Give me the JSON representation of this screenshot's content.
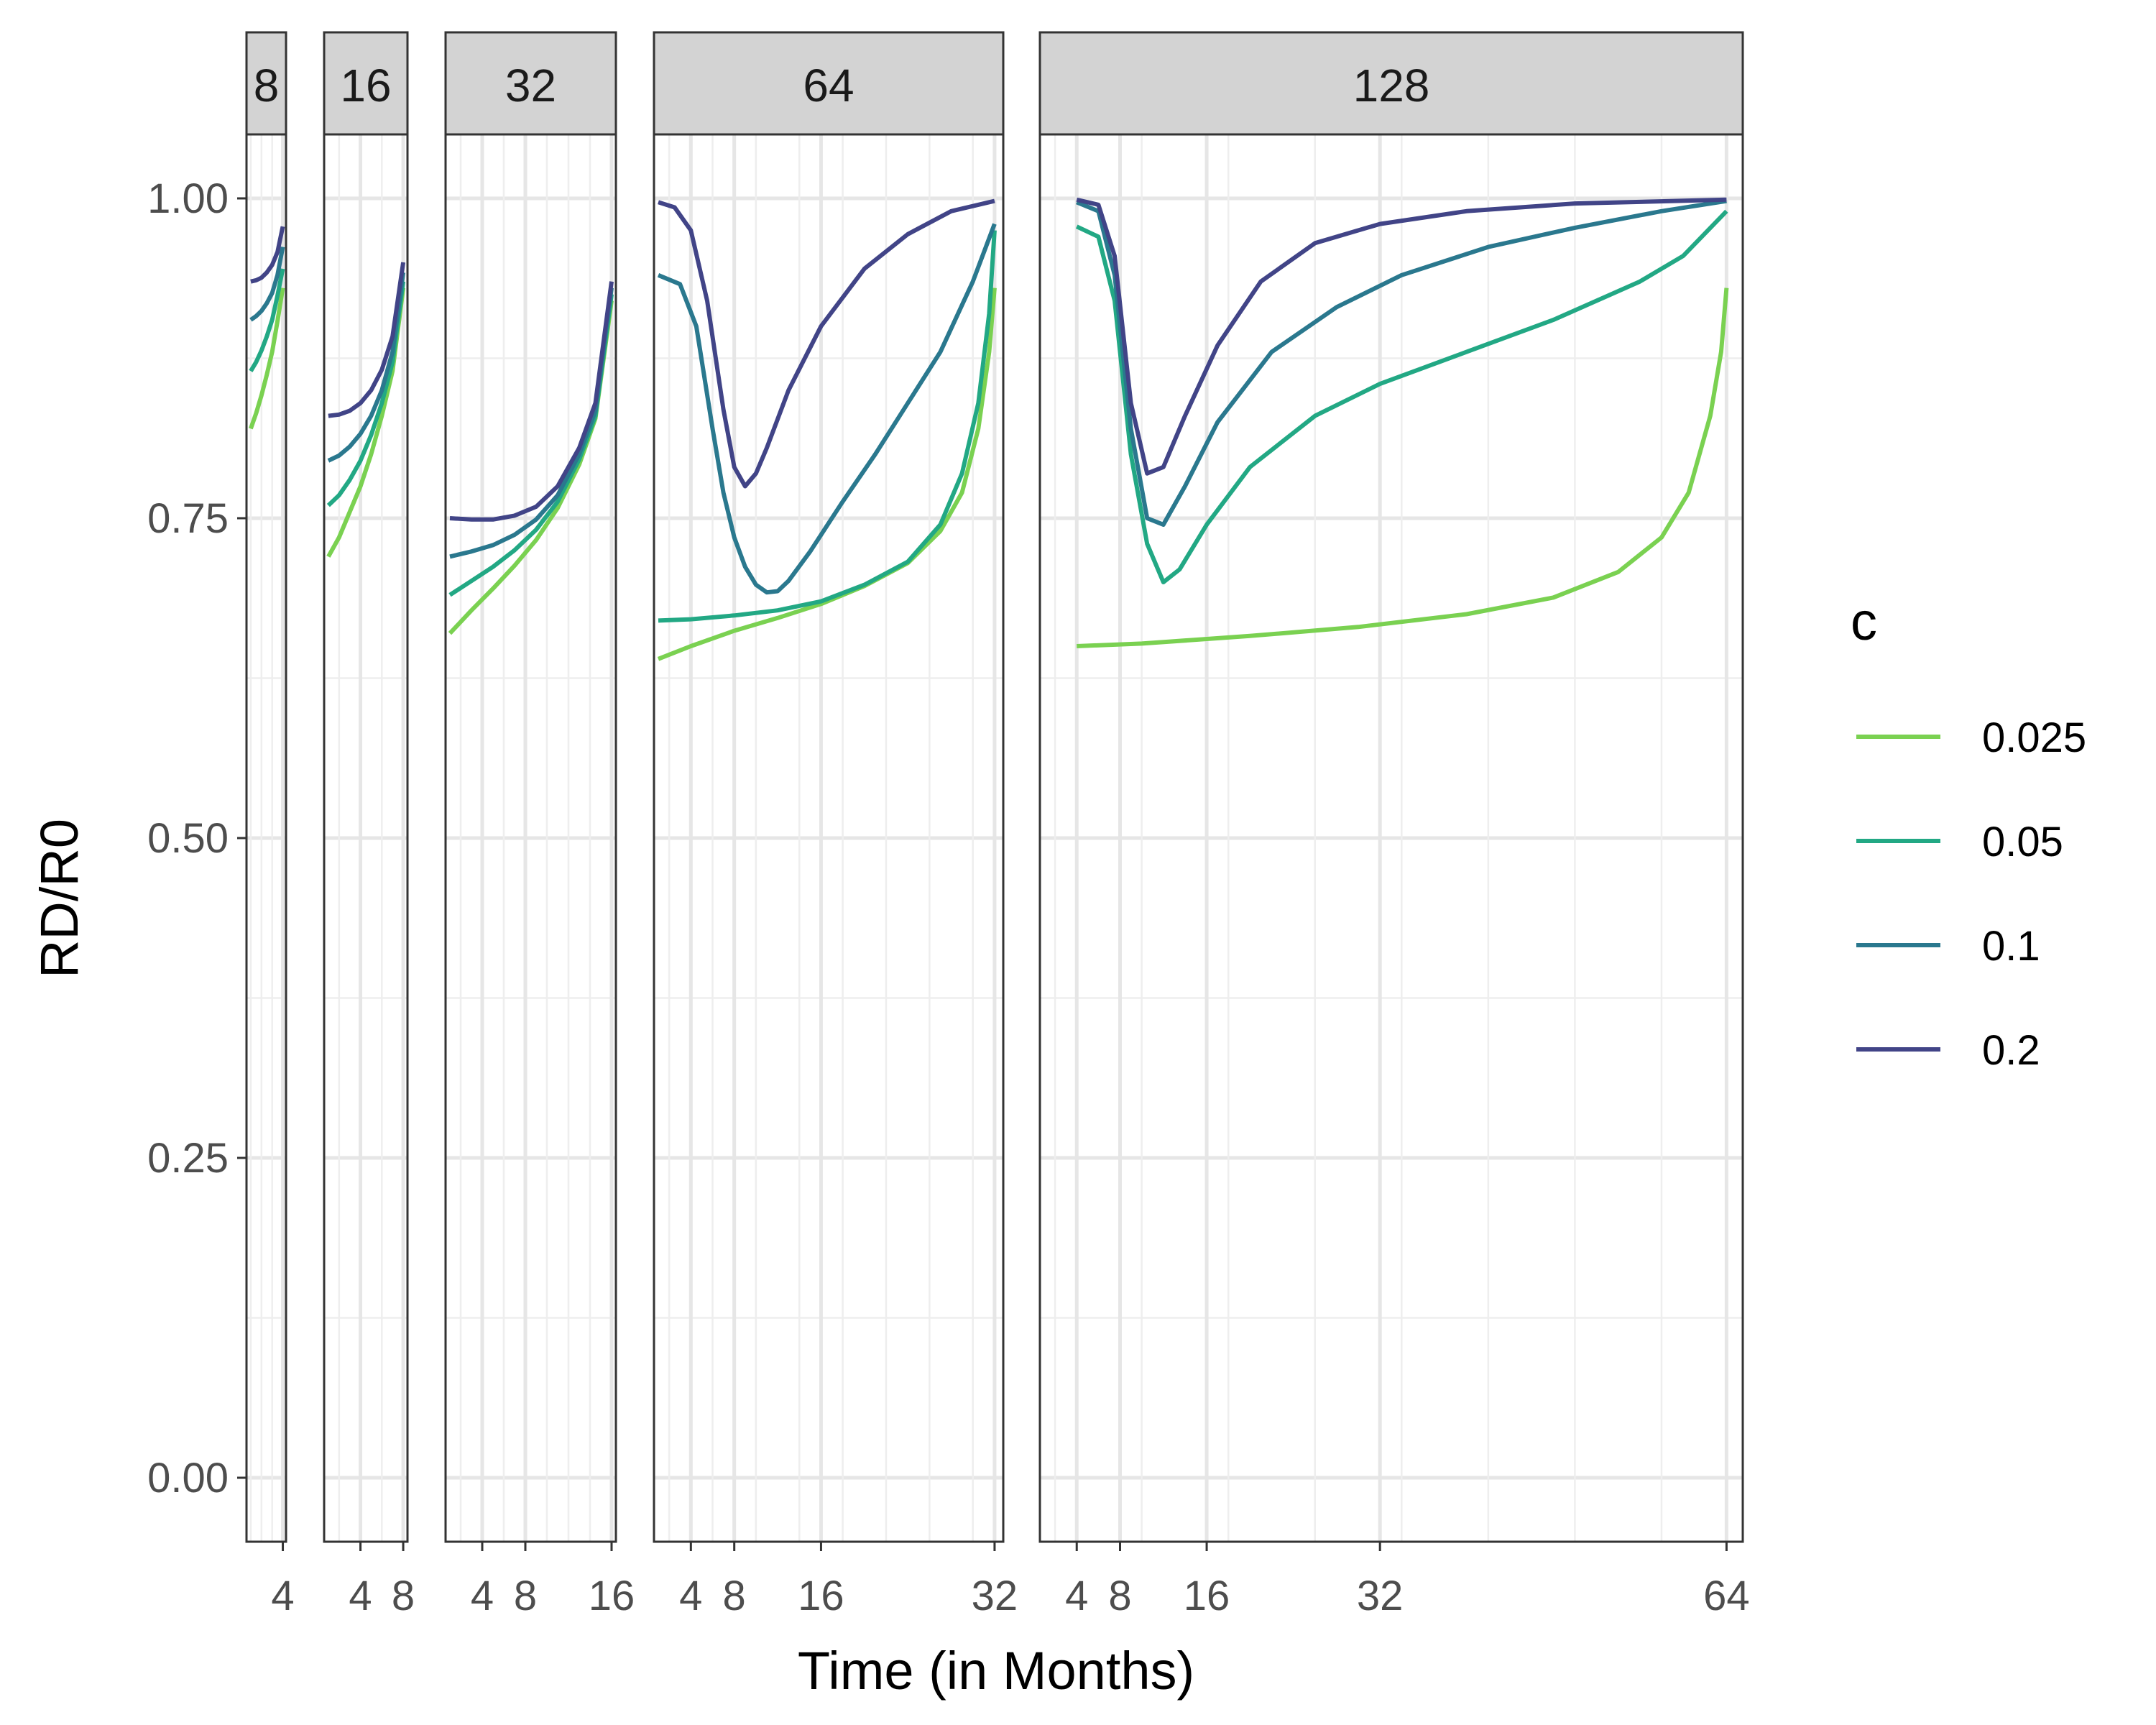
{
  "chart_data": {
    "type": "line",
    "xlabel": "Time (in Months)",
    "ylabel": "RD/R0",
    "ylim": [
      -0.05,
      1.05
    ],
    "y_ticks": [
      0.0,
      0.25,
      0.5,
      0.75,
      1.0
    ],
    "y_tick_labels": [
      "0.00",
      "0.25",
      "0.50",
      "0.75",
      "1.00"
    ],
    "legend": {
      "title": "c",
      "placement": "right"
    },
    "series_styles": [
      {
        "name": "0.025",
        "color": "#7AD151"
      },
      {
        "name": "0.05",
        "color": "#22A884"
      },
      {
        "name": "0.1",
        "color": "#2A788E"
      },
      {
        "name": "0.2",
        "color": "#414487"
      }
    ],
    "panels": [
      {
        "label": "8",
        "xlim": [
          0.6,
          4.3
        ],
        "x_ticks": [
          4
        ],
        "x_tick_labels": [
          "4"
        ],
        "series": [
          {
            "name": "0.025",
            "points": [
              [
                1,
                0.82
              ],
              [
                1.5,
                0.832
              ],
              [
                2,
                0.846
              ],
              [
                2.5,
                0.862
              ],
              [
                3,
                0.88
              ],
              [
                3.5,
                0.904
              ],
              [
                4,
                0.93
              ]
            ]
          },
          {
            "name": "0.05",
            "points": [
              [
                1,
                0.865
              ],
              [
                1.5,
                0.872
              ],
              [
                2,
                0.881
              ],
              [
                2.5,
                0.892
              ],
              [
                3,
                0.905
              ],
              [
                3.5,
                0.924
              ],
              [
                4,
                0.945
              ]
            ]
          },
          {
            "name": "0.1",
            "points": [
              [
                1,
                0.905
              ],
              [
                1.5,
                0.908
              ],
              [
                2,
                0.912
              ],
              [
                2.5,
                0.918
              ],
              [
                3,
                0.926
              ],
              [
                3.5,
                0.94
              ],
              [
                4,
                0.962
              ]
            ]
          },
          {
            "name": "0.2",
            "points": [
              [
                1,
                0.935
              ],
              [
                1.5,
                0.936
              ],
              [
                2,
                0.938
              ],
              [
                2.5,
                0.942
              ],
              [
                3,
                0.948
              ],
              [
                3.5,
                0.958
              ],
              [
                4,
                0.978
              ]
            ]
          }
        ]
      },
      {
        "label": "16",
        "xlim": [
          0.6,
          8.4
        ],
        "x_ticks": [
          4,
          8
        ],
        "x_tick_labels": [
          "4",
          "8"
        ],
        "series": [
          {
            "name": "0.025",
            "points": [
              [
                1,
                0.72
              ],
              [
                2,
                0.735
              ],
              [
                3,
                0.755
              ],
              [
                4,
                0.775
              ],
              [
                5,
                0.8
              ],
              [
                6,
                0.83
              ],
              [
                7,
                0.865
              ],
              [
                8,
                0.93
              ]
            ]
          },
          {
            "name": "0.05",
            "points": [
              [
                1,
                0.76
              ],
              [
                2,
                0.768
              ],
              [
                3,
                0.78
              ],
              [
                4,
                0.795
              ],
              [
                5,
                0.815
              ],
              [
                6,
                0.84
              ],
              [
                7,
                0.872
              ],
              [
                8,
                0.935
              ]
            ]
          },
          {
            "name": "0.1",
            "points": [
              [
                1,
                0.795
              ],
              [
                2,
                0.799
              ],
              [
                3,
                0.806
              ],
              [
                4,
                0.816
              ],
              [
                5,
                0.83
              ],
              [
                6,
                0.85
              ],
              [
                7,
                0.88
              ],
              [
                8,
                0.942
              ]
            ]
          },
          {
            "name": "0.2",
            "points": [
              [
                1,
                0.83
              ],
              [
                2,
                0.831
              ],
              [
                3,
                0.834
              ],
              [
                4,
                0.84
              ],
              [
                5,
                0.85
              ],
              [
                6,
                0.866
              ],
              [
                7,
                0.892
              ],
              [
                8,
                0.95
              ]
            ]
          }
        ]
      },
      {
        "label": "32",
        "xlim": [
          0.6,
          16.4
        ],
        "x_ticks": [
          4,
          8,
          16
        ],
        "x_tick_labels": [
          "4",
          "8",
          "16"
        ],
        "series": [
          {
            "name": "0.025",
            "points": [
              [
                1,
                0.66
              ],
              [
                3,
                0.678
              ],
              [
                5,
                0.695
              ],
              [
                7,
                0.713
              ],
              [
                9,
                0.733
              ],
              [
                11,
                0.758
              ],
              [
                13,
                0.792
              ],
              [
                14.5,
                0.828
              ],
              [
                16,
                0.92
              ]
            ]
          },
          {
            "name": "0.05",
            "points": [
              [
                1,
                0.69
              ],
              [
                3,
                0.701
              ],
              [
                5,
                0.712
              ],
              [
                7,
                0.725
              ],
              [
                9,
                0.741
              ],
              [
                11,
                0.763
              ],
              [
                13,
                0.796
              ],
              [
                14.5,
                0.83
              ],
              [
                16,
                0.925
              ]
            ]
          },
          {
            "name": "0.1",
            "points": [
              [
                1,
                0.72
              ],
              [
                3,
                0.724
              ],
              [
                5,
                0.729
              ],
              [
                7,
                0.737
              ],
              [
                9,
                0.749
              ],
              [
                11,
                0.768
              ],
              [
                13,
                0.8
              ],
              [
                14.5,
                0.834
              ],
              [
                16,
                0.93
              ]
            ]
          },
          {
            "name": "0.2",
            "points": [
              [
                1,
                0.75
              ],
              [
                3,
                0.749
              ],
              [
                5,
                0.749
              ],
              [
                7,
                0.752
              ],
              [
                9,
                0.759
              ],
              [
                11,
                0.775
              ],
              [
                13,
                0.805
              ],
              [
                14.5,
                0.84
              ],
              [
                16,
                0.935
              ]
            ]
          }
        ]
      },
      {
        "label": "64",
        "xlim": [
          0.6,
          32.8
        ],
        "x_ticks": [
          4,
          8,
          16,
          32
        ],
        "x_tick_labels": [
          "4",
          "8",
          "16",
          "32"
        ],
        "series": [
          {
            "name": "0.025",
            "points": [
              [
                1,
                0.64
              ],
              [
                4,
                0.65
              ],
              [
                8,
                0.662
              ],
              [
                12,
                0.672
              ],
              [
                16,
                0.683
              ],
              [
                20,
                0.697
              ],
              [
                24,
                0.715
              ],
              [
                27,
                0.74
              ],
              [
                29,
                0.77
              ],
              [
                30.5,
                0.82
              ],
              [
                31.5,
                0.88
              ],
              [
                32,
                0.93
              ]
            ]
          },
          {
            "name": "0.05",
            "points": [
              [
                1,
                0.67
              ],
              [
                4,
                0.671
              ],
              [
                8,
                0.674
              ],
              [
                12,
                0.678
              ],
              [
                16,
                0.685
              ],
              [
                20,
                0.698
              ],
              [
                24,
                0.716
              ],
              [
                27,
                0.745
              ],
              [
                29,
                0.785
              ],
              [
                30.5,
                0.84
              ],
              [
                31.5,
                0.91
              ],
              [
                32,
                0.975
              ]
            ]
          },
          {
            "name": "0.1",
            "points": [
              [
                1,
                0.94
              ],
              [
                3,
                0.933
              ],
              [
                4.5,
                0.9
              ],
              [
                6,
                0.82
              ],
              [
                7,
                0.77
              ],
              [
                8,
                0.735
              ],
              [
                9,
                0.712
              ],
              [
                10,
                0.698
              ],
              [
                11,
                0.692
              ],
              [
                12,
                0.693
              ],
              [
                13,
                0.701
              ],
              [
                15,
                0.724
              ],
              [
                18,
                0.763
              ],
              [
                21,
                0.8
              ],
              [
                24,
                0.84
              ],
              [
                27,
                0.88
              ],
              [
                30,
                0.935
              ],
              [
                32,
                0.98
              ]
            ]
          },
          {
            "name": "0.2",
            "points": [
              [
                1,
                0.997
              ],
              [
                2.5,
                0.993
              ],
              [
                4,
                0.975
              ],
              [
                5.5,
                0.92
              ],
              [
                7,
                0.835
              ],
              [
                8,
                0.79
              ],
              [
                9,
                0.775
              ],
              [
                10,
                0.785
              ],
              [
                11,
                0.805
              ],
              [
                13,
                0.85
              ],
              [
                16,
                0.9
              ],
              [
                20,
                0.945
              ],
              [
                24,
                0.972
              ],
              [
                28,
                0.99
              ],
              [
                32,
                0.998
              ]
            ]
          }
        ]
      },
      {
        "label": "128",
        "xlim": [
          0.6,
          65.5
        ],
        "x_ticks": [
          4,
          8,
          16,
          32,
          64
        ],
        "x_tick_labels": [
          "4",
          "8",
          "16",
          "32",
          "64"
        ],
        "series": [
          {
            "name": "0.025",
            "points": [
              [
                4,
                0.65
              ],
              [
                10,
                0.652
              ],
              [
                20,
                0.658
              ],
              [
                30,
                0.665
              ],
              [
                40,
                0.675
              ],
              [
                48,
                0.688
              ],
              [
                54,
                0.708
              ],
              [
                58,
                0.735
              ],
              [
                60.5,
                0.77
              ],
              [
                62.5,
                0.83
              ],
              [
                63.5,
                0.88
              ],
              [
                64,
                0.93
              ]
            ]
          },
          {
            "name": "0.05",
            "points": [
              [
                4,
                0.978
              ],
              [
                6,
                0.97
              ],
              [
                7.5,
                0.92
              ],
              [
                9,
                0.8
              ],
              [
                10.5,
                0.73
              ],
              [
                12,
                0.7
              ],
              [
                13.5,
                0.71
              ],
              [
                16,
                0.745
              ],
              [
                20,
                0.79
              ],
              [
                26,
                0.83
              ],
              [
                32,
                0.855
              ],
              [
                40,
                0.88
              ],
              [
                48,
                0.905
              ],
              [
                56,
                0.935
              ],
              [
                60,
                0.955
              ],
              [
                64,
                0.99
              ]
            ]
          },
          {
            "name": "0.1",
            "points": [
              [
                4,
                0.997
              ],
              [
                6,
                0.99
              ],
              [
                7.5,
                0.94
              ],
              [
                9,
                0.82
              ],
              [
                10.5,
                0.75
              ],
              [
                12,
                0.745
              ],
              [
                14,
                0.775
              ],
              [
                17,
                0.825
              ],
              [
                22,
                0.88
              ],
              [
                28,
                0.915
              ],
              [
                34,
                0.94
              ],
              [
                42,
                0.962
              ],
              [
                50,
                0.977
              ],
              [
                58,
                0.99
              ],
              [
                64,
                0.998
              ]
            ]
          },
          {
            "name": "0.2",
            "points": [
              [
                4,
                0.999
              ],
              [
                6,
                0.995
              ],
              [
                7.5,
                0.955
              ],
              [
                9,
                0.84
              ],
              [
                10.5,
                0.785
              ],
              [
                12,
                0.79
              ],
              [
                14,
                0.83
              ],
              [
                17,
                0.885
              ],
              [
                21,
                0.935
              ],
              [
                26,
                0.965
              ],
              [
                32,
                0.98
              ],
              [
                40,
                0.99
              ],
              [
                50,
                0.996
              ],
              [
                64,
                0.999
              ]
            ]
          }
        ]
      }
    ]
  }
}
